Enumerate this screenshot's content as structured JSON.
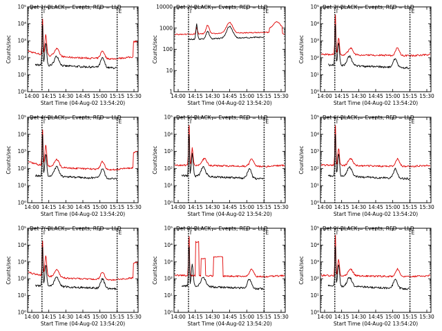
{
  "colors": {
    "events": "#000000",
    "lld": "#e00000"
  },
  "chart_data": [
    {
      "type": "line",
      "title": "Det 1(-BLACK = Events, RED = LLD",
      "title_prefix": "Det 1",
      "title_suffix": "(-BLACK = Events, RED = LLD",
      "ylabel": "Counts/sec",
      "xlabel": "Start Time (04-Aug-02 13:54:20)",
      "x_ticks": [
        "14:00",
        "14:15",
        "14:30",
        "14:45",
        "15:00",
        "15:15",
        "15:30"
      ],
      "y_ticks": [
        "10⁰",
        "10¹",
        "10²",
        "10³",
        "10⁴",
        "10⁵"
      ],
      "y_scale": "log",
      "ylim": [
        1,
        100000
      ],
      "markers": [
        "I",
        "E"
      ],
      "profile": "A"
    },
    {
      "type": "line",
      "title": "Det 2(-BLACK = Events, RED = LLD",
      "title_prefix": "Det 2",
      "title_suffix": "(-BLACK = Events, RED = LLD",
      "ylabel": "Counts/sec",
      "xlabel": "Start Time (04-Aug-02 13:54:20)",
      "x_ticks": [
        "14:00",
        "14:15",
        "14:30",
        "14:45",
        "15:00",
        "15:15",
        "15:30"
      ],
      "y_ticks": [
        "1",
        "10",
        "100",
        "1000",
        "10000"
      ],
      "y_scale": "log",
      "ylim": [
        1,
        10000
      ],
      "markers": [
        "I",
        "E"
      ],
      "profile": "B"
    },
    {
      "type": "line",
      "title": "Det 3(-BLACK = Events, RED = LLD",
      "title_prefix": "Det 3",
      "title_suffix": "(-BLACK = Events, RED = LLD",
      "ylabel": "Counts/sec",
      "xlabel": "Start Time (04-Aug-02 13:54:20)",
      "x_ticks": [
        "14:00",
        "14:15",
        "14:30",
        "14:45",
        "15:00",
        "15:15",
        "15:30"
      ],
      "y_ticks": [
        "10⁰",
        "10¹",
        "10²",
        "10³",
        "10⁴",
        "10⁵"
      ],
      "y_scale": "log",
      "ylim": [
        1,
        100000
      ],
      "markers": [
        "I",
        "E"
      ],
      "profile": "C"
    },
    {
      "type": "line",
      "title": "Det 4(-BLACK = Events, RED = LLD",
      "title_prefix": "Det 4",
      "title_suffix": "(-BLACK = Events, RED = LLD",
      "ylabel": "Counts/sec",
      "xlabel": "Start Time (04-Aug-02 13:54:20)",
      "x_ticks": [
        "14:00",
        "14:15",
        "14:30",
        "14:45",
        "15:00",
        "15:15",
        "15:30"
      ],
      "y_ticks": [
        "10⁰",
        "10¹",
        "10²",
        "10³",
        "10⁴",
        "10⁵"
      ],
      "y_scale": "log",
      "ylim": [
        1,
        100000
      ],
      "markers": [
        "I",
        "E"
      ],
      "profile": "A"
    },
    {
      "type": "line",
      "title": "Det 5(-BLACK = Events, RED = LLD",
      "title_prefix": "Det 5",
      "title_suffix": "(-BLACK = Events, RED = LLD",
      "ylabel": "Counts/sec",
      "xlabel": "Start Time (04-Aug-02 13:54:20)",
      "x_ticks": [
        "14:00",
        "14:15",
        "14:30",
        "14:45",
        "15:00",
        "15:15",
        "15:30"
      ],
      "y_ticks": [
        "10⁰",
        "10¹",
        "10²",
        "10³",
        "10⁴",
        "10⁵"
      ],
      "y_scale": "log",
      "ylim": [
        1,
        100000
      ],
      "markers": [
        "I",
        "E"
      ],
      "profile": "C"
    },
    {
      "type": "line",
      "title": "Det 6(-BLACK = Events, RED = LLD",
      "title_prefix": "Det 6",
      "title_suffix": "(-BLACK = Events, RED = LLD",
      "ylabel": "Counts/sec",
      "xlabel": "Start Time (04-Aug-02 13:54:20)",
      "x_ticks": [
        "14:00",
        "14:15",
        "14:30",
        "14:45",
        "15:00",
        "15:15",
        "15:30"
      ],
      "y_ticks": [
        "10⁰",
        "10¹",
        "10²",
        "10³",
        "10⁴",
        "10⁵"
      ],
      "y_scale": "log",
      "ylim": [
        1,
        100000
      ],
      "markers": [
        "I",
        "E"
      ],
      "profile": "C"
    },
    {
      "type": "line",
      "title": "Det 7(-BLACK = Events, RED = LLD",
      "title_prefix": "Det 7",
      "title_suffix": "(-BLACK = Events, RED = LLD",
      "ylabel": "Counts/sec",
      "xlabel": "Start Time (04-Aug-02 13:54:20)",
      "x_ticks": [
        "14:00",
        "14:15",
        "14:30",
        "14:45",
        "15:00",
        "15:15",
        "15:30"
      ],
      "y_ticks": [
        "10⁰",
        "10¹",
        "10²",
        "10³",
        "10⁴",
        "10⁵"
      ],
      "y_scale": "log",
      "ylim": [
        1,
        100000
      ],
      "markers": [
        "I",
        "E"
      ],
      "profile": "A"
    },
    {
      "type": "line",
      "title": "Det 8(-BLACK = Events, RED = LLD",
      "title_prefix": "Det 8",
      "title_suffix": "(-BLACK = Events, RED = LLD",
      "ylabel": "Counts/sec",
      "xlabel": "Start Time (04-Aug-02 13:54:20)",
      "x_ticks": [
        "14:00",
        "14:15",
        "14:30",
        "14:45",
        "15:00",
        "15:15",
        "15:30"
      ],
      "y_ticks": [
        "10⁰",
        "10¹",
        "10²",
        "10³",
        "10⁴",
        "10⁵"
      ],
      "y_scale": "log",
      "ylim": [
        1,
        100000
      ],
      "markers": [
        "I",
        "E"
      ],
      "profile": "D"
    },
    {
      "type": "line",
      "title": "Det 9(-BLACK = Events, RED = LLD",
      "title_prefix": "Det 9",
      "title_suffix": "(-BLACK = Events, RED = LLD",
      "ylabel": "Counts/sec",
      "xlabel": "Start Time (04-Aug-02 13:54:20)",
      "x_ticks": [
        "14:00",
        "14:15",
        "14:30",
        "14:45",
        "15:00",
        "15:15",
        "15:30"
      ],
      "y_ticks": [
        "10⁰",
        "10¹",
        "10²",
        "10³",
        "10⁴",
        "10⁵"
      ],
      "y_scale": "log",
      "ylim": [
        1,
        100000
      ],
      "markers": [
        "I",
        "E"
      ],
      "profile": "C"
    }
  ]
}
